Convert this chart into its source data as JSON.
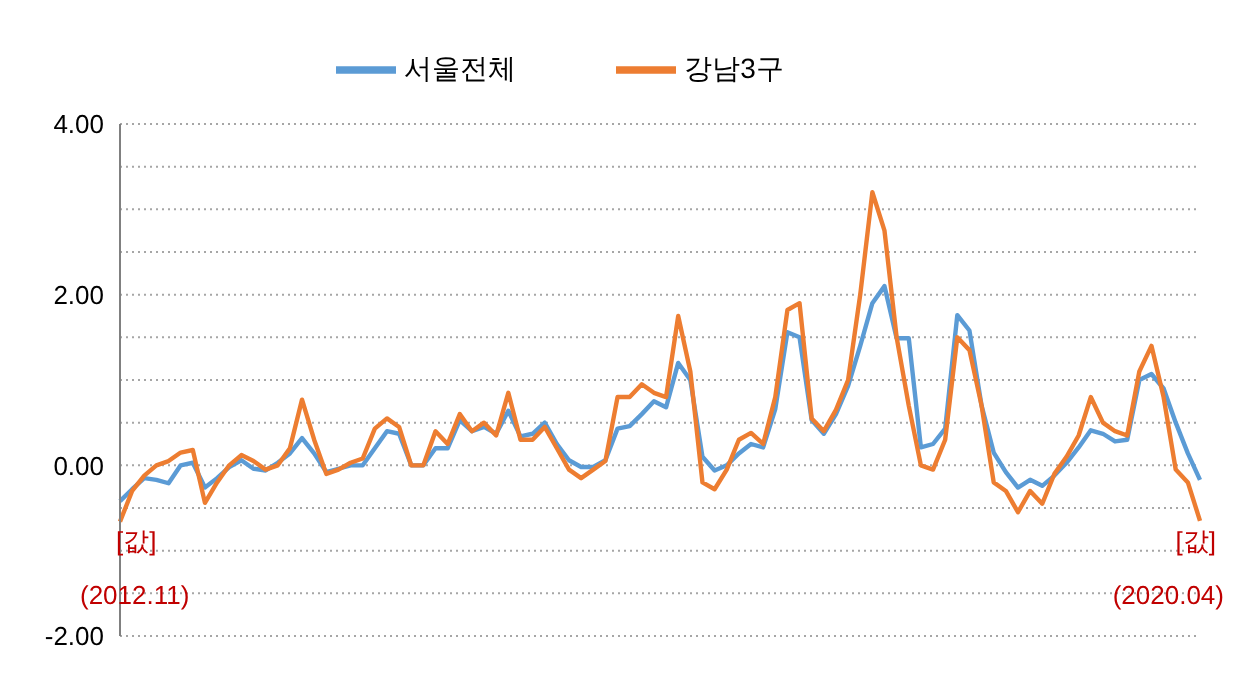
{
  "chart_data": {
    "type": "line",
    "categories": [
      null,
      null,
      null,
      null,
      null,
      null,
      null,
      null,
      null,
      null,
      null,
      null,
      null,
      null,
      null,
      null,
      null,
      null,
      null,
      null,
      null,
      null,
      null,
      null,
      null,
      null,
      null,
      null,
      null,
      null,
      null,
      null,
      null,
      null,
      null,
      null,
      null,
      null,
      null,
      null,
      null,
      null,
      null,
      null,
      null,
      null,
      null,
      null,
      null,
      null,
      null,
      null,
      null,
      null,
      null,
      null,
      null,
      null,
      null,
      null,
      null,
      null,
      null,
      null,
      null,
      null,
      null,
      null,
      null,
      null,
      null,
      null,
      null,
      null,
      null,
      null,
      null,
      null,
      null,
      null,
      null,
      null,
      null,
      null,
      null,
      null,
      null,
      null,
      null,
      null
    ],
    "series": [
      {
        "name": "서울전체",
        "color": "#5b9bd5",
        "values": [
          -0.42,
          -0.28,
          -0.15,
          -0.17,
          -0.21,
          0.0,
          0.03,
          -0.26,
          -0.15,
          -0.02,
          0.06,
          -0.04,
          -0.06,
          0.03,
          0.14,
          0.32,
          0.14,
          -0.08,
          -0.04,
          0.0,
          0.0,
          0.2,
          0.4,
          0.37,
          0.0,
          0.0,
          0.2,
          0.2,
          0.53,
          0.4,
          0.45,
          0.37,
          0.64,
          0.34,
          0.37,
          0.5,
          0.25,
          0.06,
          -0.02,
          -0.02,
          0.06,
          0.43,
          0.46,
          0.6,
          0.75,
          0.68,
          1.2,
          1.0,
          0.1,
          -0.06,
          0.0,
          0.14,
          0.25,
          0.21,
          0.66,
          1.56,
          1.5,
          0.53,
          0.37,
          0.6,
          0.93,
          1.4,
          1.9,
          2.1,
          1.49,
          1.49,
          0.21,
          0.25,
          0.43,
          1.76,
          1.58,
          0.7,
          0.15,
          -0.08,
          -0.26,
          -0.17,
          -0.24,
          -0.12,
          0.03,
          0.21,
          0.41,
          0.37,
          0.28,
          0.3,
          1.0,
          1.07,
          0.9,
          0.5,
          0.14,
          -0.17
        ]
      },
      {
        "name": "강남3구",
        "color": "#ed7d31",
        "values": [
          -0.66,
          -0.3,
          -0.12,
          0.0,
          0.05,
          0.15,
          0.18,
          -0.44,
          -0.2,
          0.0,
          0.12,
          0.05,
          -0.05,
          0.0,
          0.2,
          0.77,
          0.3,
          -0.1,
          -0.05,
          0.03,
          0.08,
          0.43,
          0.55,
          0.45,
          0.0,
          0.0,
          0.4,
          0.25,
          0.6,
          0.4,
          0.5,
          0.35,
          0.85,
          0.3,
          0.3,
          0.45,
          0.2,
          -0.05,
          -0.15,
          -0.05,
          0.05,
          0.8,
          0.8,
          0.95,
          0.85,
          0.8,
          1.75,
          1.1,
          -0.2,
          -0.28,
          -0.05,
          0.3,
          0.38,
          0.25,
          0.8,
          1.82,
          1.9,
          0.55,
          0.4,
          0.65,
          1.0,
          2.0,
          3.2,
          2.75,
          1.5,
          0.7,
          0.0,
          -0.05,
          0.3,
          1.5,
          1.35,
          0.7,
          -0.2,
          -0.3,
          -0.55,
          -0.3,
          -0.45,
          -0.1,
          0.1,
          0.35,
          0.8,
          0.5,
          0.4,
          0.35,
          1.1,
          1.4,
          0.8,
          -0.05,
          -0.2,
          -0.65
        ]
      }
    ],
    "ylim": [
      -2,
      4
    ],
    "yticks": [
      {
        "value": -2,
        "label": "-2.00"
      },
      {
        "value": -1.5,
        "label": null
      },
      {
        "value": -1,
        "label": null
      },
      {
        "value": -0.5,
        "label": null
      },
      {
        "value": 0,
        "label": "0.00"
      },
      {
        "value": 0.5,
        "label": null
      },
      {
        "value": 1,
        "label": null
      },
      {
        "value": 1.5,
        "label": null
      },
      {
        "value": 2,
        "label": "2.00"
      },
      {
        "value": 2.5,
        "label": null
      },
      {
        "value": 3,
        "label": null
      },
      {
        "value": 3.5,
        "label": null
      },
      {
        "value": 4,
        "label": "4.00"
      }
    ],
    "grid": "y",
    "legend": "top",
    "tick_labels": "y",
    "marker": "none",
    "annotations": [
      "[값]",
      "(2012.11)",
      "[값]",
      "(2020.04)"
    ]
  }
}
